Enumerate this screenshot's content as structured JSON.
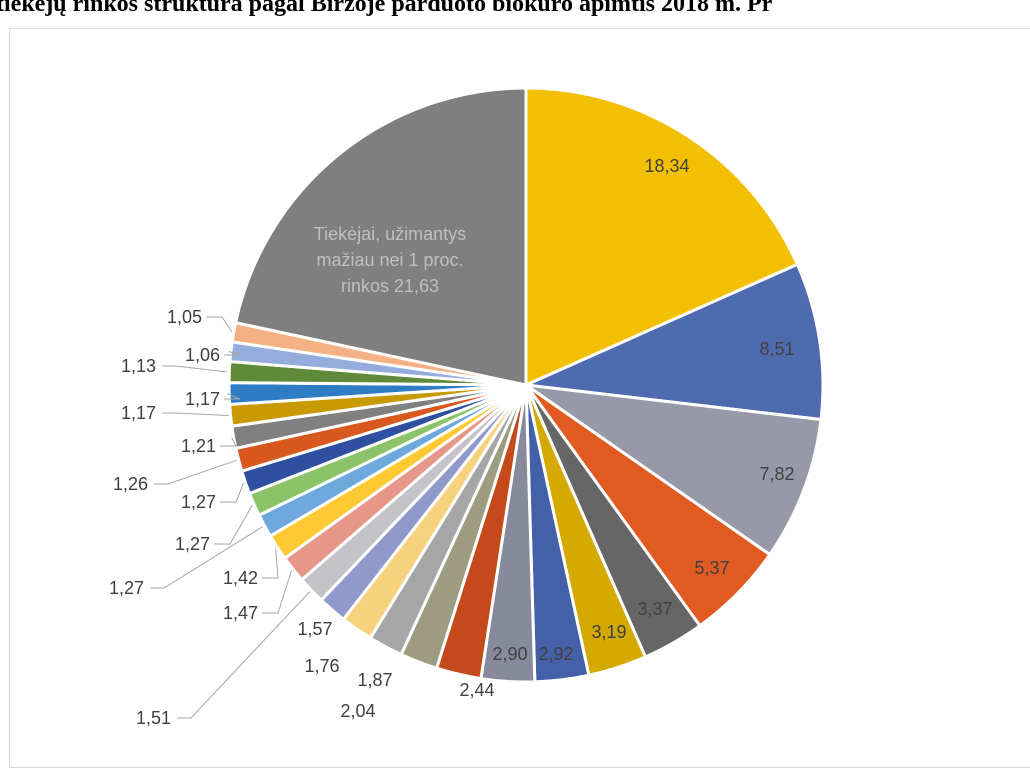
{
  "chart_data": {
    "type": "pie",
    "title": "tiekėjų rinkos struktūra pagal Biržoje parduoto biokuro apimtis 2018 m. Pr",
    "total": 100,
    "other_label_lines": [
      "Tiekėjai, užimantys",
      "mažiau nei 1 proc.",
      "rinkos 21,63"
    ],
    "slices": [
      {
        "value": 18.34,
        "label": "18,34",
        "color": "#F2C000"
      },
      {
        "value": 8.51,
        "label": "8,51",
        "color": "#4F6BB0"
      },
      {
        "value": 7.82,
        "label": "7,82",
        "color": "#9899A8"
      },
      {
        "value": 5.37,
        "label": "5,37",
        "color": "#E05A22"
      },
      {
        "value": 3.37,
        "label": "3,37",
        "color": "#666666"
      },
      {
        "value": 3.19,
        "label": "3,19",
        "color": "#D4A900"
      },
      {
        "value": 2.92,
        "label": "2,92",
        "color": "#4460A8"
      },
      {
        "value": 2.9,
        "label": "2,90",
        "color": "#878A9A"
      },
      {
        "value": 2.44,
        "label": "2,44",
        "color": "#C44A1C"
      },
      {
        "value": 2.04,
        "label": "2,04",
        "color": "#9E9C80"
      },
      {
        "value": 1.87,
        "label": "1,87",
        "color": "#A6A6A6"
      },
      {
        "value": 1.76,
        "label": "1,76",
        "color": "#F7D27E"
      },
      {
        "value": 1.57,
        "label": "1,57",
        "color": "#8F9ACB"
      },
      {
        "value": 1.51,
        "label": "1,51",
        "color": "#C3C3C8"
      },
      {
        "value": 1.47,
        "label": "1,47",
        "color": "#E6978A"
      },
      {
        "value": 1.42,
        "label": "1,42",
        "color": "#FFC933"
      },
      {
        "value": 1.27,
        "label": "1,27",
        "color": "#6FA8DC"
      },
      {
        "value": 1.27,
        "label": "1,27",
        "color": "#8CC26A"
      },
      {
        "value": 1.27,
        "label": "1,27",
        "color": "#2F4FA0"
      },
      {
        "value": 1.26,
        "label": "1,26",
        "color": "#D8581F"
      },
      {
        "value": 1.21,
        "label": "1,21",
        "color": "#808080"
      },
      {
        "value": 1.17,
        "label": "1,17",
        "color": "#C89A00"
      },
      {
        "value": 1.17,
        "label": "1,17",
        "color": "#2E7CC4"
      },
      {
        "value": 1.13,
        "label": "1,13",
        "color": "#5E8A3A"
      },
      {
        "value": 1.06,
        "label": "1,06",
        "color": "#94ADDC"
      },
      {
        "value": 1.05,
        "label": "1,05",
        "color": "#F4B183"
      },
      {
        "value": 21.63,
        "label": "",
        "color": "#7F7F7F",
        "is_other": true
      }
    ]
  }
}
